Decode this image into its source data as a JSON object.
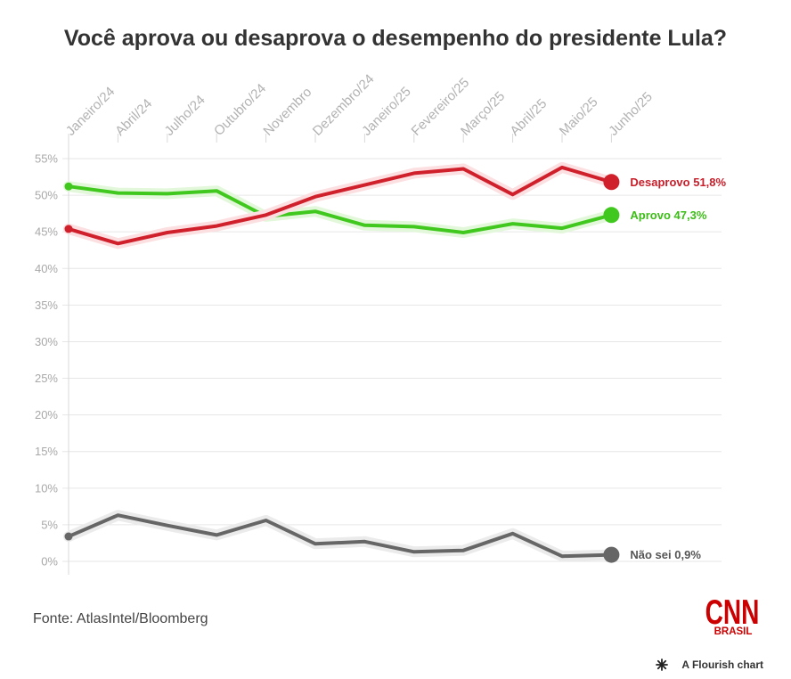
{
  "source": "Fonte: AtlasIntel/Bloomberg",
  "logo": {
    "name": "CNN",
    "subtitle": "BRASIL",
    "color": "#cc0000"
  },
  "credit": "A Flourish chart",
  "chart_data": {
    "type": "line",
    "title": "Você aprova ou desaprova o desempenho do presidente Lula?",
    "xlabel": "",
    "ylabel": "",
    "x_axis_position": "top",
    "grid": "horizontal",
    "ylim": [
      0,
      55
    ],
    "y_ticks": [
      0,
      5,
      10,
      15,
      20,
      25,
      30,
      35,
      40,
      45,
      50,
      55
    ],
    "y_tick_labels": [
      "0%",
      "5%",
      "10%",
      "15%",
      "20%",
      "25%",
      "30%",
      "35%",
      "40%",
      "45%",
      "50%",
      "55%"
    ],
    "categories": [
      "Janeiro/24",
      "Abril/24",
      "Julho/24",
      "Outubro/24",
      "Novembro",
      "Dezembro/24",
      "Janeiro/25",
      "Fevereiro/25",
      "Março/25",
      "Abril/25",
      "Maio/25",
      "Junho/25"
    ],
    "series": [
      {
        "name": "Desaprovo",
        "value_label": "51,8%",
        "color": "#d0202c",
        "halo": "#fbdfe1",
        "label_color": "#c81e2a",
        "values": [
          45.4,
          43.4,
          44.9,
          45.8,
          47.3,
          49.8,
          51.4,
          53.0,
          53.6,
          50.1,
          53.8,
          51.8
        ]
      },
      {
        "name": "Aprovo",
        "value_label": "47,3%",
        "color": "#41c81f",
        "halo": "#e3f8db",
        "label_color": "#3bbd16",
        "values": [
          51.2,
          50.3,
          50.2,
          50.6,
          47.1,
          47.8,
          45.9,
          45.7,
          44.9,
          46.1,
          45.5,
          47.3
        ]
      },
      {
        "name": "Não sei",
        "value_label": "0,9%",
        "color": "#666666",
        "halo": "#ebebeb",
        "label_color": "#555555",
        "values": [
          3.4,
          6.3,
          4.9,
          3.6,
          5.6,
          2.4,
          2.7,
          1.3,
          1.5,
          3.8,
          0.7,
          0.9
        ]
      }
    ]
  }
}
